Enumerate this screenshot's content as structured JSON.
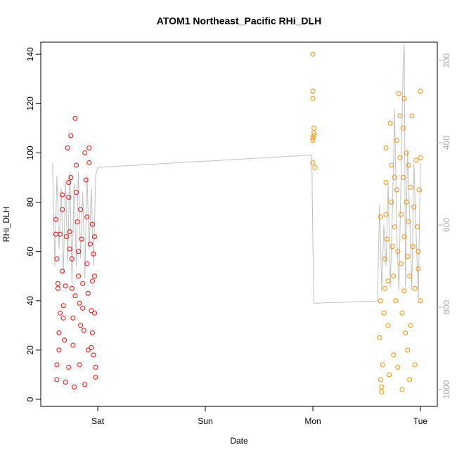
{
  "chart_data": {
    "type": "scatter",
    "title": "ATOM1 Northeast_Pacific RHi_DLH",
    "x_label": "Date",
    "y_label": "RHi_DLH",
    "xlim": [
      -0.53,
      3.157
    ],
    "xticks": [
      {
        "value": 0,
        "label": "Sat"
      },
      {
        "value": 1,
        "label": "Sun"
      },
      {
        "value": 2,
        "label": "Mon"
      },
      {
        "value": 3,
        "label": "Tue"
      }
    ],
    "ylim": [
      -2.85,
      144.9
    ],
    "yticks": [
      0,
      20,
      40,
      60,
      80,
      100,
      120,
      140
    ],
    "y2lim": [
      1041,
      155.6
    ],
    "y2ticks": [
      200,
      400,
      600,
      800,
      1000
    ],
    "series": [
      {
        "color": "#ff0000",
        "x": [
          -0.39,
          -0.39,
          -0.38,
          -0.37,
          -0.37,
          -0.36,
          -0.36,
          -0.38,
          -0.38,
          -0.35,
          -0.33,
          -0.33,
          -0.33,
          -0.32,
          -0.32,
          -0.31,
          -0.3,
          -0.29,
          -0.28,
          -0.27,
          -0.27,
          -0.26,
          -0.26,
          -0.25,
          -0.25,
          -0.24,
          -0.24,
          -0.23,
          -0.23,
          -0.22,
          -0.21,
          -0.2,
          -0.2,
          -0.19,
          -0.18,
          -0.18,
          -0.17,
          -0.17,
          -0.16,
          -0.15,
          -0.14,
          -0.14,
          -0.13,
          -0.12,
          -0.11,
          -0.1,
          -0.1,
          -0.09,
          -0.08,
          -0.08,
          -0.07,
          -0.06,
          -0.06,
          -0.05,
          -0.05,
          -0.04,
          -0.04,
          -0.03,
          -0.03,
          -0.02,
          -0.02,
          -0.03,
          -0.05,
          -0.09,
          -0.12,
          -0.16,
          -0.21,
          -0.27,
          -0.3,
          -0.35
        ],
        "values": [
          73,
          67,
          57,
          47,
          45,
          27,
          20,
          14,
          8,
          67,
          83,
          77,
          52,
          38,
          33,
          24,
          7,
          66,
          102,
          88,
          82,
          68,
          61,
          107,
          90,
          57,
          45,
          33,
          22,
          5,
          114,
          95,
          84,
          72,
          60,
          50,
          39,
          14,
          77,
          65,
          47,
          37,
          28,
          100,
          89,
          74,
          55,
          43,
          102,
          96,
          63,
          36,
          21,
          71,
          48,
          59,
          18,
          66,
          35,
          13,
          9,
          50,
          27,
          20,
          6,
          30,
          42,
          13,
          46,
          35
        ]
      },
      {
        "color": "#ff8c00",
        "x": [
          2.0,
          2.0,
          2.0,
          2.01,
          2.01,
          2.0,
          2.0,
          2.02,
          2.01,
          2.0,
          2.62,
          2.63,
          2.63,
          2.63,
          2.64,
          2.64,
          2.65,
          2.66,
          2.67,
          2.67,
          2.68,
          2.68,
          2.68,
          2.69,
          2.7,
          2.7,
          2.71,
          2.72,
          2.73,
          2.73,
          2.74,
          2.75,
          2.75,
          2.76,
          2.76,
          2.77,
          2.78,
          2.78,
          2.79,
          2.79,
          2.8,
          2.81,
          2.81,
          2.82,
          2.82,
          2.83,
          2.83,
          2.84,
          2.84,
          2.85,
          2.85,
          2.86,
          2.87,
          2.87,
          2.88,
          2.88,
          2.89,
          2.89,
          2.9,
          2.91,
          2.91,
          2.92,
          2.93,
          2.94,
          2.95,
          2.95,
          2.96,
          2.97,
          2.98,
          2.99,
          3.0,
          3.0,
          3.0,
          2.98,
          2.9,
          2.85
        ],
        "values": [
          140,
          125,
          122,
          110,
          108,
          105,
          96,
          94,
          107,
          106,
          25,
          40,
          74,
          8,
          5,
          3,
          14,
          35,
          45,
          57,
          75,
          88,
          102,
          65,
          48,
          30,
          10,
          112,
          95,
          80,
          62,
          50,
          18,
          90,
          70,
          40,
          105,
          85,
          60,
          13,
          124,
          115,
          98,
          75,
          55,
          35,
          4,
          110,
          90,
          66,
          44,
          27,
          100,
          80,
          58,
          20,
          95,
          72,
          50,
          86,
          30,
          115,
          62,
          78,
          45,
          14,
          97,
          70,
          53,
          85,
          125,
          98,
          40,
          60,
          8,
          122
        ]
      },
      {
        "type": "line",
        "axis": "y2",
        "color": "#c0c0c0",
        "x": [
          -0.42,
          -0.4,
          -0.38,
          -0.36,
          -0.34,
          -0.32,
          -0.3,
          -0.28,
          -0.26,
          -0.24,
          -0.22,
          -0.2,
          -0.18,
          -0.16,
          -0.14,
          -0.12,
          -0.1,
          -0.08,
          -0.06,
          -0.04,
          -0.02,
          0.0,
          1.99,
          2.0,
          2.01,
          2.6,
          2.62,
          2.64,
          2.66,
          2.68,
          2.7,
          2.72,
          2.74,
          2.76,
          2.78,
          2.8,
          2.82,
          2.84,
          2.85,
          2.86,
          2.88,
          2.9,
          2.92,
          2.94,
          2.96,
          2.98,
          3.0
        ],
        "values": [
          450,
          700,
          480,
          660,
          510,
          720,
          490,
          690,
          470,
          740,
          500,
          700,
          470,
          680,
          520,
          730,
          480,
          660,
          510,
          700,
          480,
          460,
          430,
          640,
          790,
          785,
          550,
          760,
          600,
          700,
          500,
          750,
          560,
          320,
          620,
          760,
          480,
          200,
          160,
          750,
          420,
          580,
          760,
          450,
          620,
          780,
          450
        ]
      }
    ]
  }
}
